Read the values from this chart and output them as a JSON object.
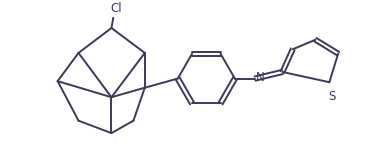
{
  "bg_color": "#ffffff",
  "line_color": "#3a3a5c",
  "line_width": 1.4,
  "figsize": [
    3.87,
    1.47
  ],
  "dpi": 100,
  "cl_label": "Cl",
  "n_label": "N",
  "s_label": "S",
  "font_size": 8.5,
  "xlim": [
    0,
    10
  ],
  "ylim": [
    0,
    3.8
  ]
}
